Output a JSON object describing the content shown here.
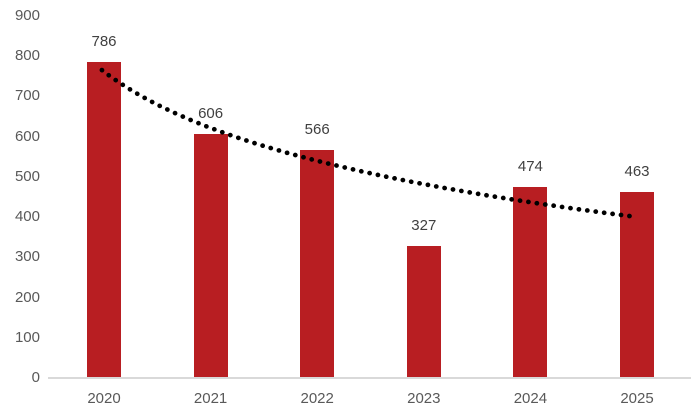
{
  "chart_data": {
    "type": "bar",
    "title": "",
    "xlabel": "",
    "ylabel": "",
    "categories": [
      "2020",
      "2021",
      "2022",
      "2023",
      "2024",
      "2025"
    ],
    "values": [
      786,
      606,
      566,
      327,
      474,
      463
    ],
    "data_labels": [
      "786",
      "606",
      "566",
      "327",
      "474",
      "463"
    ],
    "y_ticks": [
      0,
      100,
      200,
      300,
      400,
      500,
      600,
      700,
      800,
      900
    ],
    "ylim": [
      0,
      900
    ],
    "grid": "off",
    "legend": "none",
    "bar_color": "#b81e22",
    "trendline": {
      "type": "logarithmic",
      "style": "dotted",
      "color": "#000000",
      "fit": {
        "a": 761,
        "b": -201.5
      },
      "approx_values_at_categories": [
        761,
        621,
        540,
        482,
        437,
        400
      ]
    },
    "colors": {
      "axis_label": "#595959",
      "data_label": "#404040",
      "axis_line": "#d9d9d9",
      "background": "#ffffff"
    }
  }
}
